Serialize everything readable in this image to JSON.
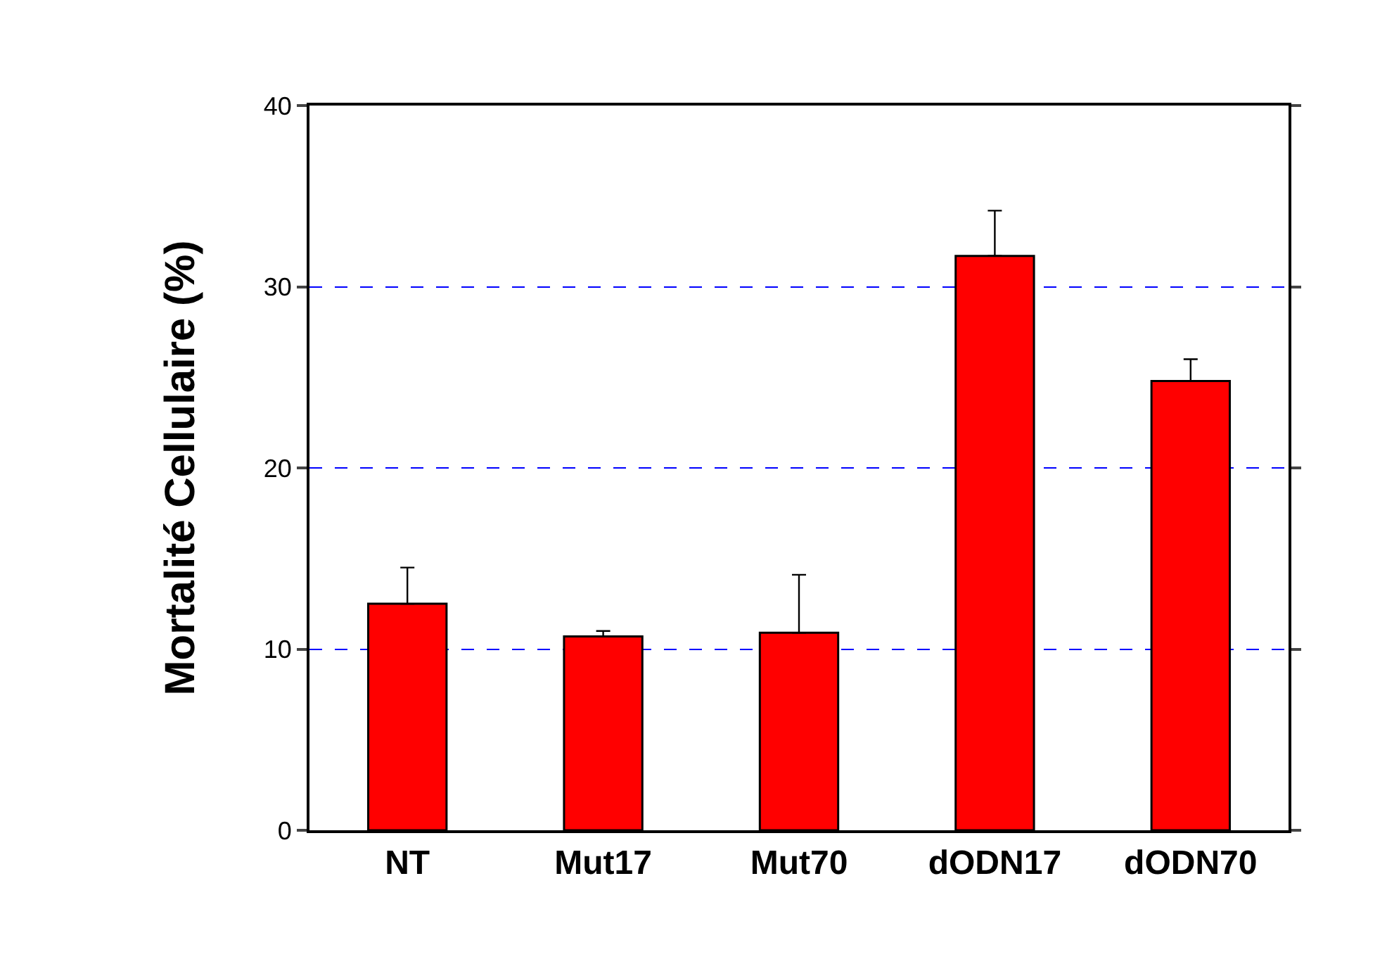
{
  "chart_data": {
    "type": "bar",
    "ylabel": "Mortalité Cellulaire (%)",
    "categories": [
      "NT",
      "Mut17",
      "Mut70",
      "dODN17",
      "dODN70"
    ],
    "values": [
      12.5,
      10.7,
      10.9,
      31.7,
      24.8
    ],
    "errors": [
      [
        12.5,
        14.5
      ],
      [
        10.7,
        11.0
      ],
      [
        10.9,
        14.1
      ],
      [
        31.7,
        34.2
      ],
      [
        24.8,
        26.0
      ]
    ],
    "color": "#ff0000",
    "ylim": [
      0,
      40
    ],
    "yticks": [
      0,
      10,
      20,
      30,
      40
    ],
    "grid": "y"
  }
}
